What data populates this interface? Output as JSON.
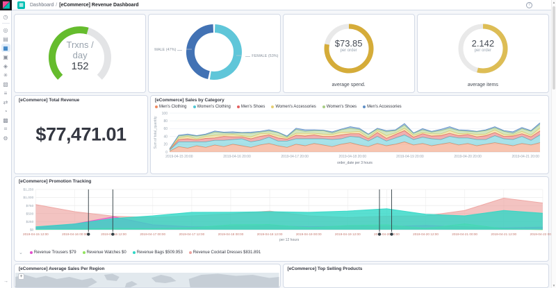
{
  "header": {
    "breadcrumb": "Dashboard",
    "separator": "/",
    "title": "[eCommerce] Revenue Dashboard",
    "app_icon_glyph": "▦",
    "help_glyph": "?"
  },
  "sidebar": {
    "items": [
      {
        "name": "recently-viewed",
        "glyph": "◷"
      },
      {
        "name": "divider",
        "divider": true
      },
      {
        "name": "discover",
        "glyph": "◎"
      },
      {
        "name": "visualize",
        "glyph": "▤"
      },
      {
        "name": "dashboard",
        "glyph": "▦",
        "selected": true
      },
      {
        "name": "canvas",
        "glyph": "▣"
      },
      {
        "name": "maps",
        "glyph": "◈"
      },
      {
        "name": "machine-learning",
        "glyph": "✳"
      },
      {
        "name": "metrics",
        "glyph": "▧"
      },
      {
        "name": "logs",
        "glyph": "≡"
      },
      {
        "name": "apm",
        "glyph": "⇄"
      },
      {
        "name": "uptime",
        "glyph": "◔"
      },
      {
        "name": "siem",
        "glyph": "▩"
      },
      {
        "name": "dev-tools",
        "glyph": "⌗"
      },
      {
        "name": "management",
        "glyph": "⚙"
      }
    ],
    "collapse_glyph": "→"
  },
  "scrollbar": {
    "up": "▲",
    "down": "▼"
  },
  "panels": {
    "gauge_trxns": {
      "line1": "Trxns /",
      "line2": "day",
      "value": "152",
      "percent": 0.56,
      "color": "#65bc2d",
      "track": "#e3e4e6"
    },
    "gender_donut": {
      "male_label": "MALE (47%)",
      "female_label": "FEMALE (53%)",
      "male_pct": 47,
      "female_pct": 53,
      "male_color": "#4272b4",
      "female_color": "#5fc6d9"
    },
    "avg_spend": {
      "value": "$73.85",
      "unit": "per order",
      "caption": "average spend.",
      "percent": 0.78,
      "color": "#d5ac39",
      "track": "#e9e9e9"
    },
    "avg_items": {
      "value": "2.142",
      "unit": "per order",
      "caption": "average items",
      "percent": 0.54,
      "color": "#ddbd55",
      "track": "#e9e9e9"
    },
    "total_revenue": {
      "title": "[eCommerce] Total Revenue",
      "value": "$77,471.01"
    },
    "sales": {
      "title": "[eCommerce] Sales by Category"
    },
    "promotion": {
      "title": "[eCommerce] Promotion Tracking",
      "legend_chevron": "⌄"
    },
    "map": {
      "title": "[eCommerce] Average Sales Per Region",
      "zoom_in": "+"
    },
    "top_products": {
      "title": "[eCommerce] Top Selling Products"
    }
  },
  "chart_data": [
    {
      "id": "sales-by-category",
      "type": "area",
      "stacked": true,
      "title": "[eCommerce] Sales by Category",
      "xlabel": "order_date per 3 hours",
      "ylabel": "Sum of total_quantity",
      "ylim": [
        0,
        100
      ],
      "yticks": [
        0,
        20,
        40,
        60,
        80,
        100
      ],
      "grid": true,
      "legend_position": "top",
      "xticks": [
        {
          "label": "2019-04-15 20:00",
          "f": 0.026
        },
        {
          "label": "2019-04-16 20:00",
          "f": 0.182
        },
        {
          "label": "2019-04-17 20:00",
          "f": 0.338
        },
        {
          "label": "2019-04-18 20:00",
          "f": 0.494
        },
        {
          "label": "2019-04-19 20:00",
          "f": 0.649
        },
        {
          "label": "2019-04-20 20:00",
          "f": 0.805
        },
        {
          "label": "2019-04-21 20:00",
          "f": 0.961
        }
      ],
      "series": [
        {
          "name": "Men's Clothing",
          "color": "#f08a5f",
          "values": [
            2,
            14,
            10,
            16,
            12,
            18,
            14,
            20,
            16,
            12,
            18,
            22,
            16,
            12,
            20,
            16,
            22,
            18,
            14,
            20,
            24,
            18,
            14,
            22,
            16,
            20,
            26,
            18,
            22,
            16,
            20,
            24,
            18,
            22,
            16,
            20,
            24,
            20,
            16,
            22,
            18,
            24
          ]
        },
        {
          "name": "Women's Clothing",
          "color": "#52c6d4",
          "values": [
            3,
            12,
            16,
            10,
            14,
            12,
            16,
            12,
            18,
            14,
            12,
            16,
            12,
            16,
            14,
            18,
            12,
            16,
            18,
            14,
            16,
            20,
            14,
            18,
            12,
            16,
            18,
            14,
            16,
            18,
            12,
            16,
            18,
            14,
            16,
            12,
            18,
            14,
            16,
            18,
            12,
            20
          ]
        },
        {
          "name": "Men's Shoes",
          "color": "#e35f5f",
          "values": [
            1,
            6,
            8,
            5,
            9,
            6,
            10,
            7,
            5,
            8,
            10,
            6,
            8,
            5,
            9,
            7,
            10,
            6,
            8,
            10,
            7,
            9,
            6,
            10,
            7,
            9,
            11,
            6,
            9,
            7,
            10,
            8,
            6,
            9,
            7,
            10,
            8,
            6,
            9,
            7,
            9,
            10
          ]
        },
        {
          "name": "Women's Accessories",
          "color": "#e7cf72",
          "values": [
            1,
            4,
            6,
            3,
            5,
            7,
            4,
            6,
            3,
            5,
            7,
            4,
            6,
            3,
            5,
            7,
            4,
            6,
            5,
            7,
            4,
            6,
            3,
            5,
            7,
            4,
            6,
            5,
            3,
            6,
            4,
            7,
            5,
            3,
            6,
            4,
            7,
            5,
            3,
            6,
            4,
            8
          ]
        },
        {
          "name": "Women's Shoes",
          "color": "#a7cd84",
          "values": [
            1,
            5,
            3,
            7,
            4,
            8,
            5,
            3,
            7,
            9,
            4,
            6,
            8,
            3,
            10,
            5,
            7,
            9,
            4,
            6,
            10,
            5,
            8,
            4,
            10,
            6,
            8,
            5,
            7,
            4,
            9,
            6,
            8,
            5,
            7,
            9,
            5,
            8,
            4,
            7,
            10,
            9
          ]
        },
        {
          "name": "Men's Accessories",
          "color": "#5f8fc6",
          "values": [
            0,
            2,
            3,
            1,
            2,
            3,
            2,
            4,
            1,
            3,
            2,
            3,
            1,
            2,
            3,
            4,
            2,
            1,
            3,
            2,
            4,
            3,
            1,
            2,
            3,
            2,
            4,
            1,
            3,
            2,
            3,
            4,
            2,
            3,
            1,
            2,
            3,
            2,
            4,
            3,
            2,
            4
          ]
        }
      ]
    },
    {
      "id": "promotion-tracking",
      "type": "area",
      "stacked": false,
      "title": "[eCommerce] Promotion Tracking",
      "xlabel": "per 12 hours",
      "ylim": [
        0,
        1250
      ],
      "yticks": [
        {
          "label": "$0",
          "v": 0
        },
        {
          "label": "$250",
          "v": 250
        },
        {
          "label": "$500",
          "v": 500
        },
        {
          "label": "$750",
          "v": 750
        },
        {
          "label": "$1,000",
          "v": 1000
        },
        {
          "label": "$1,250",
          "v": 1250
        }
      ],
      "grid": true,
      "legend_position": "bottom",
      "xtick_labels": [
        "2019-04-15 12:00",
        "2019-04-16 00:00",
        "2019-04-16 12:00",
        "2019-04-17 00:00",
        "2019-04-17 12:00",
        "2019-04-18 00:00",
        "2019-04-18 12:00",
        "2019-04-19 00:00",
        "2019-04-19 12:00",
        "2019-04-20 00:00",
        "2019-04-20 12:00",
        "2019-04-21 00:00",
        "2019-04-21 12:00",
        "2019-04-22 00:00"
      ],
      "series": [
        {
          "name": "Revenue Trousers",
          "legend_label": "Revenue Trousers $79",
          "color": "#e250cc",
          "fill_opacity": 0.5,
          "values": [
            60,
            180,
            400,
            150,
            90,
            105,
            120,
            95,
            110,
            100,
            130,
            90,
            60,
            79
          ]
        },
        {
          "name": "Revenue Watches",
          "legend_label": "Revenue Watches $0",
          "color": "#92e35e",
          "fill_opacity": 0.55,
          "values": [
            5,
            15,
            40,
            30,
            60,
            150,
            160,
            60,
            130,
            150,
            40,
            180,
            30,
            0
          ]
        },
        {
          "name": "Revenue Bags",
          "legend_label": "Revenue Bags $509.953",
          "color": "#2fd7c5",
          "fill_opacity": 0.8,
          "values": [
            90,
            180,
            350,
            430,
            540,
            545,
            560,
            540,
            580,
            650,
            480,
            430,
            600,
            510
          ]
        },
        {
          "name": "Revenue Cocktail Dresses",
          "legend_label": "Revenue Cocktail Dresses $831.891",
          "color": "#eda3a0",
          "fill_opacity": 0.65,
          "values": [
            780,
            560,
            420,
            380,
            430,
            490,
            580,
            430,
            380,
            420,
            430,
            600,
            980,
            830
          ]
        }
      ],
      "paint_order": [
        "Revenue Cocktail Dresses",
        "Revenue Trousers",
        "Revenue Watches",
        "Revenue Bags"
      ],
      "annotations": {
        "color": "#333f45",
        "fractions": [
          0.104,
          0.152,
          0.678,
          0.702
        ]
      }
    }
  ]
}
